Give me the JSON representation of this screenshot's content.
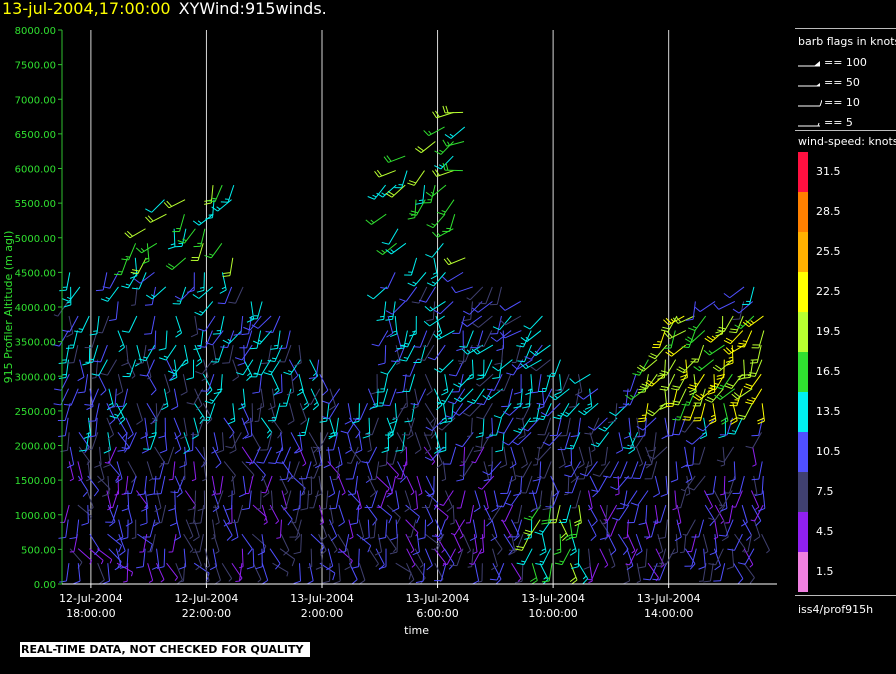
{
  "title": {
    "datetime": "13-jul-2004,17:00:00",
    "label": "XYWind:915winds."
  },
  "chart_data": {
    "type": "scatter",
    "ylabel": "915 Profiler Altitude (m agl)",
    "xlabel": "time",
    "ylim": [
      0,
      8000
    ],
    "yticks": [
      "0.00",
      "500.00",
      "1000.00",
      "1500.00",
      "2000.00",
      "2500.00",
      "3000.00",
      "3500.00",
      "4000.00",
      "4500.00",
      "5000.00",
      "5500.00",
      "6000.00",
      "6500.00",
      "7000.00",
      "7500.00",
      "8000.00"
    ],
    "xlim_hours": [
      -1,
      23.75
    ],
    "xticks": [
      {
        "hour": 0,
        "date": "12-Jul-2004",
        "time": "18:00:00"
      },
      {
        "hour": 4,
        "date": "12-Jul-2004",
        "time": "22:00:00"
      },
      {
        "hour": 8,
        "date": "13-Jul-2004",
        "time": "2:00:00"
      },
      {
        "hour": 12,
        "date": "13-Jul-2004",
        "time": "6:00:00"
      },
      {
        "hour": 16,
        "date": "13-Jul-2004",
        "time": "10:00:00"
      },
      {
        "hour": 20,
        "date": "13-Jul-2004",
        "time": "14:00:00"
      }
    ],
    "grid": "vertical at x ticks"
  },
  "legend": {
    "barb_title": "barb flags in knots",
    "barbs": [
      "== 100",
      "== 50",
      "== 10",
      "== 5"
    ],
    "speed_title": "wind-speed: knots",
    "speed_scale": [
      {
        "label": "31.5",
        "color": "#ff1040"
      },
      {
        "label": "28.5",
        "color": "#ff8000"
      },
      {
        "label": "25.5",
        "color": "#ffb000"
      },
      {
        "label": "22.5",
        "color": "#ffff00"
      },
      {
        "label": "19.5",
        "color": "#b8ff30"
      },
      {
        "label": "16.5",
        "color": "#30e030"
      },
      {
        "label": "13.5",
        "color": "#00f0f0"
      },
      {
        "label": "10.5",
        "color": "#5050ff"
      },
      {
        "label": "7.5",
        "color": "#404070"
      },
      {
        "label": "4.5",
        "color": "#9020f0"
      },
      {
        "label": "1.5",
        "color": "#f080e0"
      }
    ],
    "source": "iss4/prof915h"
  },
  "note": "REAL-TIME DATA, NOT CHECKED FOR QUALITY"
}
